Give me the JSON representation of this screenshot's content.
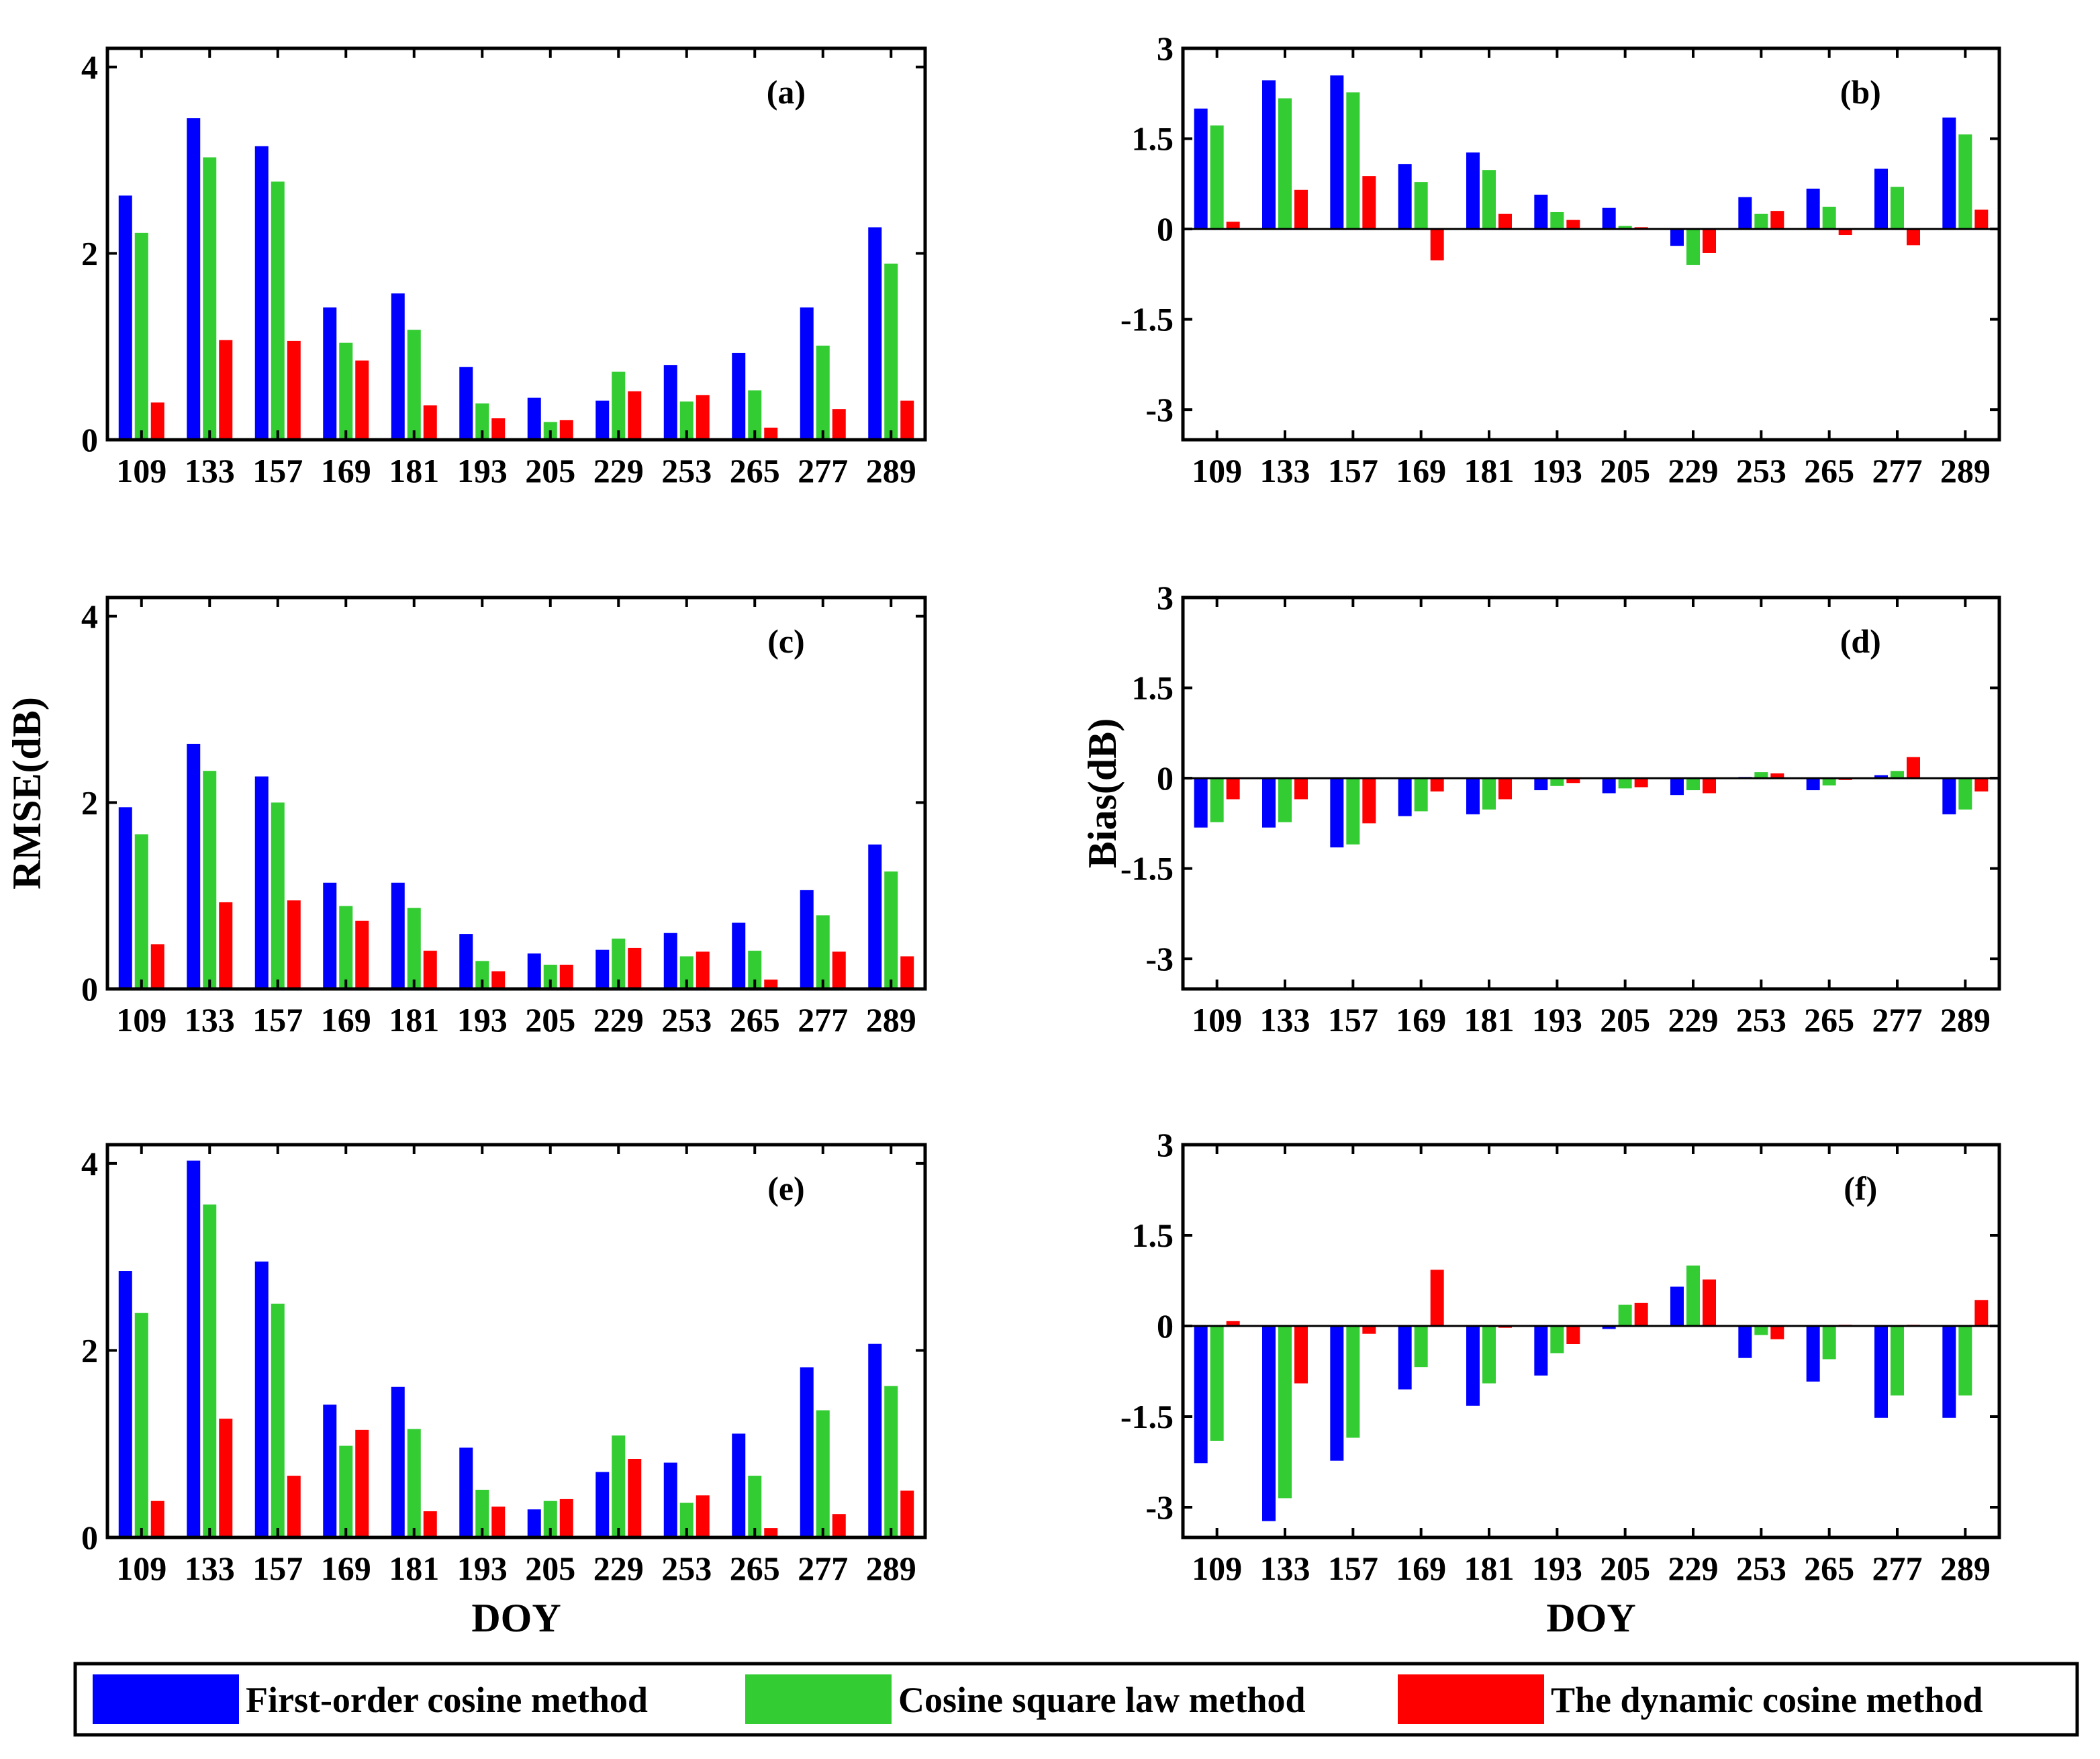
{
  "series_names": [
    "First-order cosine method",
    "Cosine square law method",
    "The dynamic cosine method"
  ],
  "colors": {
    "s0": "#0000ff",
    "s1": "#33cc33",
    "s2": "#ff0000"
  },
  "xlabel": "DOY",
  "chart_data": [
    {
      "type": "bar",
      "panel": "(a)",
      "ylabel": "",
      "xlabel": "",
      "categories": [
        "109",
        "133",
        "157",
        "169",
        "181",
        "193",
        "205",
        "229",
        "253",
        "265",
        "277",
        "289"
      ],
      "ylim": [
        0,
        4.2
      ],
      "yticks": [
        "0",
        "2",
        "4"
      ],
      "ytick_values": [
        0,
        2,
        4
      ],
      "series": [
        {
          "name": "First-order cosine method",
          "values": [
            2.62,
            3.45,
            3.15,
            1.42,
            1.57,
            0.78,
            0.45,
            0.42,
            0.8,
            0.93,
            1.42,
            2.28
          ]
        },
        {
          "name": "Cosine square law method",
          "values": [
            2.22,
            3.03,
            2.77,
            1.04,
            1.18,
            0.39,
            0.19,
            0.73,
            0.41,
            0.53,
            1.01,
            1.89
          ]
        },
        {
          "name": "The dynamic cosine method",
          "values": [
            0.4,
            1.07,
            1.06,
            0.85,
            0.37,
            0.23,
            0.21,
            0.52,
            0.48,
            0.13,
            0.33,
            0.42
          ]
        }
      ]
    },
    {
      "type": "bar",
      "panel": "(b)",
      "ylabel": "",
      "xlabel": "",
      "categories": [
        "109",
        "133",
        "157",
        "169",
        "181",
        "193",
        "205",
        "229",
        "253",
        "265",
        "277",
        "289"
      ],
      "ylim": [
        -3.5,
        3
      ],
      "yticks": [
        "-3",
        "-1.5",
        "0",
        "1.5",
        "3"
      ],
      "ytick_values": [
        -3,
        -1.5,
        0,
        1.5,
        3
      ],
      "series": [
        {
          "name": "First-order cosine method",
          "values": [
            2.0,
            2.47,
            2.55,
            1.08,
            1.27,
            0.57,
            0.35,
            -0.28,
            0.53,
            0.67,
            1.0,
            1.85
          ]
        },
        {
          "name": "Cosine square law method",
          "values": [
            1.72,
            2.17,
            2.27,
            0.78,
            0.98,
            0.28,
            0.05,
            -0.6,
            0.25,
            0.37,
            0.7,
            1.57
          ]
        },
        {
          "name": "The dynamic cosine method",
          "values": [
            0.12,
            0.65,
            0.88,
            -0.52,
            0.25,
            0.15,
            0.03,
            -0.4,
            0.3,
            -0.1,
            -0.27,
            0.32
          ]
        }
      ]
    },
    {
      "type": "bar",
      "panel": "(c)",
      "ylabel": "RMSE(dB)",
      "xlabel": "",
      "categories": [
        "109",
        "133",
        "157",
        "169",
        "181",
        "193",
        "205",
        "229",
        "253",
        "265",
        "277",
        "289"
      ],
      "ylim": [
        0,
        4.2
      ],
      "yticks": [
        "0",
        "2",
        "4"
      ],
      "ytick_values": [
        0,
        2,
        4
      ],
      "series": [
        {
          "name": "First-order cosine method",
          "values": [
            1.95,
            2.63,
            2.28,
            1.14,
            1.14,
            0.59,
            0.38,
            0.42,
            0.6,
            0.71,
            1.06,
            1.55
          ]
        },
        {
          "name": "Cosine square law method",
          "values": [
            1.66,
            2.34,
            2.0,
            0.89,
            0.87,
            0.3,
            0.26,
            0.54,
            0.35,
            0.41,
            0.79,
            1.26
          ]
        },
        {
          "name": "The dynamic cosine method",
          "values": [
            0.48,
            0.93,
            0.95,
            0.73,
            0.41,
            0.19,
            0.26,
            0.44,
            0.4,
            0.1,
            0.4,
            0.35
          ]
        }
      ]
    },
    {
      "type": "bar",
      "panel": "(d)",
      "ylabel": "Bias(dB)",
      "xlabel": "",
      "categories": [
        "109",
        "133",
        "157",
        "169",
        "181",
        "193",
        "205",
        "229",
        "253",
        "265",
        "277",
        "289"
      ],
      "ylim": [
        -3.5,
        3
      ],
      "yticks": [
        "-3",
        "-1.5",
        "0",
        "1.5",
        "3"
      ],
      "ytick_values": [
        -3,
        -1.5,
        0,
        1.5,
        3
      ],
      "series": [
        {
          "name": "First-order cosine method",
          "values": [
            -0.82,
            -0.82,
            -1.15,
            -0.63,
            -0.6,
            -0.2,
            -0.25,
            -0.28,
            0.02,
            -0.2,
            0.05,
            -0.6
          ]
        },
        {
          "name": "Cosine square law method",
          "values": [
            -0.73,
            -0.73,
            -1.1,
            -0.55,
            -0.52,
            -0.13,
            -0.17,
            -0.2,
            0.1,
            -0.12,
            0.12,
            -0.52
          ]
        },
        {
          "name": "The dynamic cosine method",
          "values": [
            -0.35,
            -0.35,
            -0.75,
            -0.22,
            -0.35,
            -0.08,
            -0.15,
            -0.25,
            0.08,
            -0.03,
            0.35,
            -0.22
          ]
        }
      ]
    },
    {
      "type": "bar",
      "panel": "(e)",
      "ylabel": "",
      "xlabel": "DOY",
      "categories": [
        "109",
        "133",
        "157",
        "169",
        "181",
        "193",
        "205",
        "229",
        "253",
        "265",
        "277",
        "289"
      ],
      "ylim": [
        0,
        4.2
      ],
      "yticks": [
        "0",
        "2",
        "4"
      ],
      "ytick_values": [
        0,
        2,
        4
      ],
      "series": [
        {
          "name": "First-order cosine method",
          "values": [
            2.85,
            4.03,
            2.95,
            1.42,
            1.61,
            0.96,
            0.3,
            0.7,
            0.8,
            1.11,
            1.82,
            2.07
          ]
        },
        {
          "name": "Cosine square law method",
          "values": [
            2.4,
            3.56,
            2.5,
            0.98,
            1.16,
            0.51,
            0.39,
            1.09,
            0.37,
            0.66,
            1.36,
            1.62
          ]
        },
        {
          "name": "The dynamic cosine method",
          "values": [
            0.39,
            1.27,
            0.66,
            1.15,
            0.28,
            0.33,
            0.41,
            0.84,
            0.45,
            0.1,
            0.25,
            0.5
          ]
        }
      ]
    },
    {
      "type": "bar",
      "panel": "(f)",
      "ylabel": "",
      "xlabel": "DOY",
      "categories": [
        "109",
        "133",
        "157",
        "169",
        "181",
        "193",
        "205",
        "229",
        "253",
        "265",
        "277",
        "289"
      ],
      "ylim": [
        -3.5,
        3
      ],
      "yticks": [
        "-3",
        "-1.5",
        "0",
        "1.5",
        "3"
      ],
      "ytick_values": [
        -3,
        -1.5,
        0,
        1.5,
        3
      ],
      "series": [
        {
          "name": "First-order cosine method",
          "values": [
            -2.27,
            -3.23,
            -2.23,
            -1.05,
            -1.32,
            -0.82,
            -0.05,
            0.65,
            -0.53,
            -0.92,
            -1.52,
            -1.52
          ]
        },
        {
          "name": "Cosine square law method",
          "values": [
            -1.9,
            -2.85,
            -1.85,
            -0.68,
            -0.95,
            -0.45,
            0.35,
            1.0,
            -0.15,
            -0.55,
            -1.15,
            -1.15
          ]
        },
        {
          "name": "The dynamic cosine method",
          "values": [
            0.08,
            -0.95,
            -0.13,
            0.93,
            -0.03,
            -0.3,
            0.38,
            0.77,
            -0.22,
            0.02,
            0.02,
            0.43
          ]
        }
      ]
    }
  ]
}
